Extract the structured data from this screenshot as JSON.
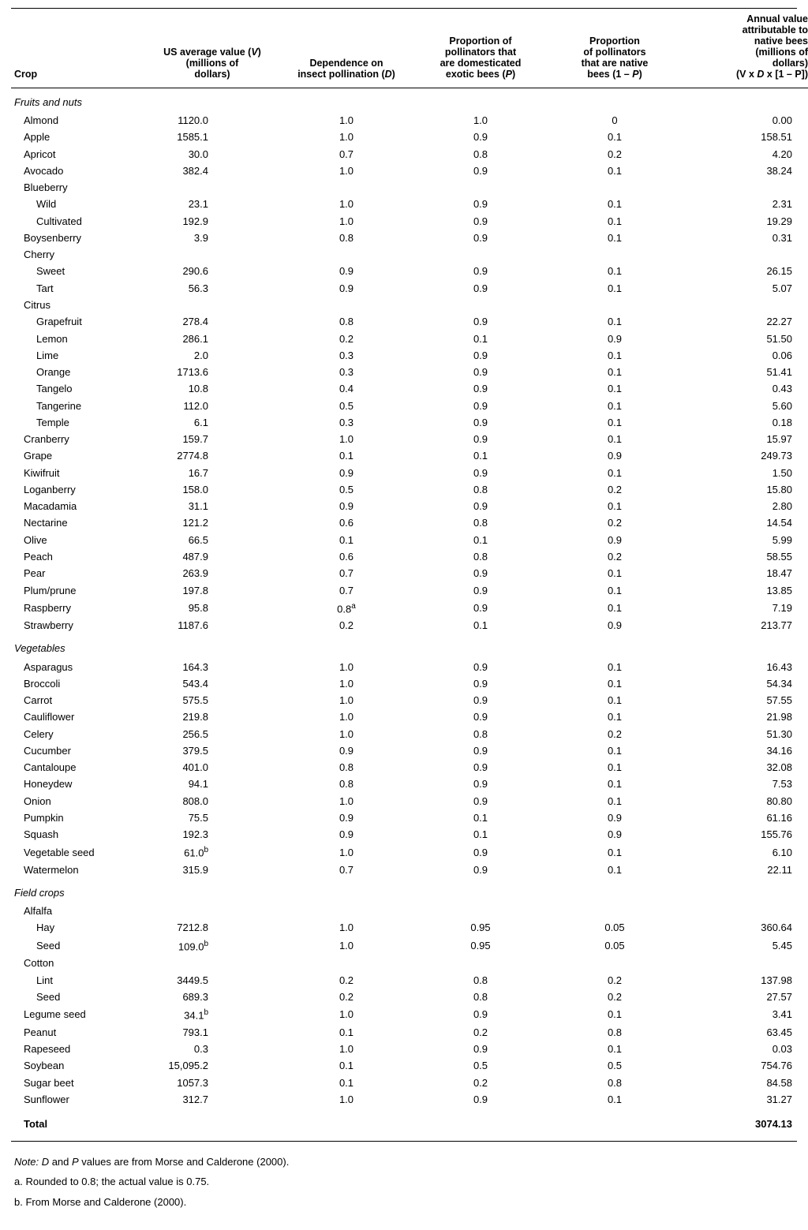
{
  "columns": {
    "crop": "Crop",
    "v": "US average value (V) (millions of dollars)",
    "d": "Dependence on insect pollination (D)",
    "p": "Proportion of pollinators that are domesticated exotic bees (P)",
    "np": "Proportion of pollinators that are native bees (1 – P)",
    "val": "Annual value attributable to native bees (millions of dollars) (V x D x [1 – P])"
  },
  "column_header_lines": {
    "crop": [
      "Crop"
    ],
    "v": [
      "US average value (V)",
      "(millions of",
      "dollars)"
    ],
    "d": [
      "Dependence on",
      "insect pollination (D)"
    ],
    "p": [
      "Proportion of",
      "pollinators that",
      "are domesticated",
      "exotic bees (P)"
    ],
    "np": [
      "Proportion",
      "of pollinators",
      "that are native",
      "bees (1 – P)"
    ],
    "val": [
      "Annual value",
      "attributable to",
      "native bees",
      "(millions of",
      "dollars)",
      "(V x D x [1 – P])"
    ]
  },
  "sections": [
    {
      "title": "Fruits and nuts",
      "rows": [
        {
          "crop": "Almond",
          "indent": 1,
          "v": "1120.0",
          "d": "1.0",
          "p": "1.0",
          "np": "0",
          "val": "0.00"
        },
        {
          "crop": "Apple",
          "indent": 1,
          "v": "1585.1",
          "d": "1.0",
          "p": "0.9",
          "np": "0.1",
          "val": "158.51"
        },
        {
          "crop": "Apricot",
          "indent": 1,
          "v": "30.0",
          "d": "0.7",
          "p": "0.8",
          "np": "0.2",
          "val": "4.20"
        },
        {
          "crop": "Avocado",
          "indent": 1,
          "v": "382.4",
          "d": "1.0",
          "p": "0.9",
          "np": "0.1",
          "val": "38.24"
        },
        {
          "crop": "Blueberry",
          "indent": 1,
          "v": "",
          "d": "",
          "p": "",
          "np": "",
          "val": ""
        },
        {
          "crop": "Wild",
          "indent": 2,
          "v": "23.1",
          "d": "1.0",
          "p": "0.9",
          "np": "0.1",
          "val": "2.31"
        },
        {
          "crop": "Cultivated",
          "indent": 2,
          "v": "192.9",
          "d": "1.0",
          "p": "0.9",
          "np": "0.1",
          "val": "19.29"
        },
        {
          "crop": "Boysenberry",
          "indent": 1,
          "v": "3.9",
          "d": "0.8",
          "p": "0.9",
          "np": "0.1",
          "val": "0.31"
        },
        {
          "crop": "Cherry",
          "indent": 1,
          "v": "",
          "d": "",
          "p": "",
          "np": "",
          "val": ""
        },
        {
          "crop": "Sweet",
          "indent": 2,
          "v": "290.6",
          "d": "0.9",
          "p": "0.9",
          "np": "0.1",
          "val": "26.15"
        },
        {
          "crop": "Tart",
          "indent": 2,
          "v": "56.3",
          "d": "0.9",
          "p": "0.9",
          "np": "0.1",
          "val": "5.07"
        },
        {
          "crop": "Citrus",
          "indent": 1,
          "v": "",
          "d": "",
          "p": "",
          "np": "",
          "val": ""
        },
        {
          "crop": "Grapefruit",
          "indent": 2,
          "v": "278.4",
          "d": "0.8",
          "p": "0.9",
          "np": "0.1",
          "val": "22.27"
        },
        {
          "crop": "Lemon",
          "indent": 2,
          "v": "286.1",
          "d": "0.2",
          "p": "0.1",
          "np": "0.9",
          "val": "51.50"
        },
        {
          "crop": "Lime",
          "indent": 2,
          "v": "2.0",
          "d": "0.3",
          "p": "0.9",
          "np": "0.1",
          "val": "0.06"
        },
        {
          "crop": "Orange",
          "indent": 2,
          "v": "1713.6",
          "d": "0.3",
          "p": "0.9",
          "np": "0.1",
          "val": "51.41"
        },
        {
          "crop": "Tangelo",
          "indent": 2,
          "v": "10.8",
          "d": "0.4",
          "p": "0.9",
          "np": "0.1",
          "val": "0.43"
        },
        {
          "crop": "Tangerine",
          "indent": 2,
          "v": "112.0",
          "d": "0.5",
          "p": "0.9",
          "np": "0.1",
          "val": "5.60"
        },
        {
          "crop": "Temple",
          "indent": 2,
          "v": "6.1",
          "d": "0.3",
          "p": "0.9",
          "np": "0.1",
          "val": "0.18"
        },
        {
          "crop": "Cranberry",
          "indent": 1,
          "v": "159.7",
          "d": "1.0",
          "p": "0.9",
          "np": "0.1",
          "val": "15.97"
        },
        {
          "crop": "Grape",
          "indent": 1,
          "v": "2774.8",
          "d": "0.1",
          "p": "0.1",
          "np": "0.9",
          "val": "249.73"
        },
        {
          "crop": "Kiwifruit",
          "indent": 1,
          "v": "16.7",
          "d": "0.9",
          "p": "0.9",
          "np": "0.1",
          "val": "1.50"
        },
        {
          "crop": "Loganberry",
          "indent": 1,
          "v": "158.0",
          "d": "0.5",
          "p": "0.8",
          "np": "0.2",
          "val": "15.80"
        },
        {
          "crop": "Macadamia",
          "indent": 1,
          "v": "31.1",
          "d": "0.9",
          "p": "0.9",
          "np": "0.1",
          "val": "2.80"
        },
        {
          "crop": "Nectarine",
          "indent": 1,
          "v": "121.2",
          "d": "0.6",
          "p": "0.8",
          "np": "0.2",
          "val": "14.54"
        },
        {
          "crop": "Olive",
          "indent": 1,
          "v": "66.5",
          "d": "0.1",
          "p": "0.1",
          "np": "0.9",
          "val": "5.99"
        },
        {
          "crop": "Peach",
          "indent": 1,
          "v": "487.9",
          "d": "0.6",
          "p": "0.8",
          "np": "0.2",
          "val": "58.55"
        },
        {
          "crop": "Pear",
          "indent": 1,
          "v": "263.9",
          "d": "0.7",
          "p": "0.9",
          "np": "0.1",
          "val": "18.47"
        },
        {
          "crop": "Plum/prune",
          "indent": 1,
          "v": "197.8",
          "d": "0.7",
          "p": "0.9",
          "np": "0.1",
          "val": "13.85"
        },
        {
          "crop": "Raspberry",
          "indent": 1,
          "v": "95.8",
          "d": "0.8",
          "d_sup": "a",
          "p": "0.9",
          "np": "0.1",
          "val": "7.19"
        },
        {
          "crop": "Strawberry",
          "indent": 1,
          "v": "1187.6",
          "d": "0.2",
          "p": "0.1",
          "np": "0.9",
          "val": "213.77"
        }
      ]
    },
    {
      "title": "Vegetables",
      "rows": [
        {
          "crop": "Asparagus",
          "indent": 1,
          "v": "164.3",
          "d": "1.0",
          "p": "0.9",
          "np": "0.1",
          "val": "16.43"
        },
        {
          "crop": "Broccoli",
          "indent": 1,
          "v": "543.4",
          "d": "1.0",
          "p": "0.9",
          "np": "0.1",
          "val": "54.34"
        },
        {
          "crop": "Carrot",
          "indent": 1,
          "v": "575.5",
          "d": "1.0",
          "p": "0.9",
          "np": "0.1",
          "val": "57.55"
        },
        {
          "crop": "Cauliflower",
          "indent": 1,
          "v": "219.8",
          "d": "1.0",
          "p": "0.9",
          "np": "0.1",
          "val": "21.98"
        },
        {
          "crop": "Celery",
          "indent": 1,
          "v": "256.5",
          "d": "1.0",
          "p": "0.8",
          "np": "0.2",
          "val": "51.30"
        },
        {
          "crop": "Cucumber",
          "indent": 1,
          "v": "379.5",
          "d": "0.9",
          "p": "0.9",
          "np": "0.1",
          "val": "34.16"
        },
        {
          "crop": "Cantaloupe",
          "indent": 1,
          "v": "401.0",
          "d": "0.8",
          "p": "0.9",
          "np": "0.1",
          "val": "32.08"
        },
        {
          "crop": "Honeydew",
          "indent": 1,
          "v": "94.1",
          "d": "0.8",
          "p": "0.9",
          "np": "0.1",
          "val": "7.53"
        },
        {
          "crop": "Onion",
          "indent": 1,
          "v": "808.0",
          "d": "1.0",
          "p": "0.9",
          "np": "0.1",
          "val": "80.80"
        },
        {
          "crop": "Pumpkin",
          "indent": 1,
          "v": "75.5",
          "d": "0.9",
          "p": "0.1",
          "np": "0.9",
          "val": "61.16"
        },
        {
          "crop": "Squash",
          "indent": 1,
          "v": "192.3",
          "d": "0.9",
          "p": "0.1",
          "np": "0.9",
          "val": "155.76"
        },
        {
          "crop": "Vegetable seed",
          "indent": 1,
          "v": "61.0",
          "v_sup": "b",
          "d": "1.0",
          "p": "0.9",
          "np": "0.1",
          "val": "6.10"
        },
        {
          "crop": "Watermelon",
          "indent": 1,
          "v": "315.9",
          "d": "0.7",
          "p": "0.9",
          "np": "0.1",
          "val": "22.11"
        }
      ]
    },
    {
      "title": "Field crops",
      "rows": [
        {
          "crop": "Alfalfa",
          "indent": 1,
          "v": "",
          "d": "",
          "p": "",
          "np": "",
          "val": ""
        },
        {
          "crop": "Hay",
          "indent": 2,
          "v": "7212.8",
          "d": "1.0",
          "p": "0.95",
          "np": "0.05",
          "val": "360.64"
        },
        {
          "crop": "Seed",
          "indent": 2,
          "v": "109.0",
          "v_sup": "b",
          "d": "1.0",
          "p": "0.95",
          "np": "0.05",
          "val": "5.45"
        },
        {
          "crop": "Cotton",
          "indent": 1,
          "v": "",
          "d": "",
          "p": "",
          "np": "",
          "val": ""
        },
        {
          "crop": "Lint",
          "indent": 2,
          "v": "3449.5",
          "d": "0.2",
          "p": "0.8",
          "np": "0.2",
          "val": "137.98"
        },
        {
          "crop": "Seed",
          "indent": 2,
          "v": "689.3",
          "d": "0.2",
          "p": "0.8",
          "np": "0.2",
          "val": "27.57"
        },
        {
          "crop": "Legume seed",
          "indent": 1,
          "v": "34.1",
          "v_sup": "b",
          "d": "1.0",
          "p": "0.9",
          "np": "0.1",
          "val": "3.41"
        },
        {
          "crop": "Peanut",
          "indent": 1,
          "v": "793.1",
          "d": "0.1",
          "p": "0.2",
          "np": "0.8",
          "val": "63.45"
        },
        {
          "crop": "Rapeseed",
          "indent": 1,
          "v": "0.3",
          "d": "1.0",
          "p": "0.9",
          "np": "0.1",
          "val": "0.03"
        },
        {
          "crop": "Soybean",
          "indent": 1,
          "v": "15,095.2",
          "d": "0.1",
          "p": "0.5",
          "np": "0.5",
          "val": "754.76"
        },
        {
          "crop": "Sugar beet",
          "indent": 1,
          "v": "1057.3",
          "d": "0.1",
          "p": "0.2",
          "np": "0.8",
          "val": "84.58"
        },
        {
          "crop": "Sunflower",
          "indent": 1,
          "v": "312.7",
          "d": "1.0",
          "p": "0.9",
          "np": "0.1",
          "val": "31.27"
        }
      ]
    }
  ],
  "total": {
    "label": "Total",
    "val": "3074.13"
  },
  "notes": {
    "note": "Note: D and P values are from Morse and Calderone (2000).",
    "a": "a. Rounded to 0.8; the actual value is 0.75.",
    "b": "b. From Morse and Calderone (2000)."
  }
}
